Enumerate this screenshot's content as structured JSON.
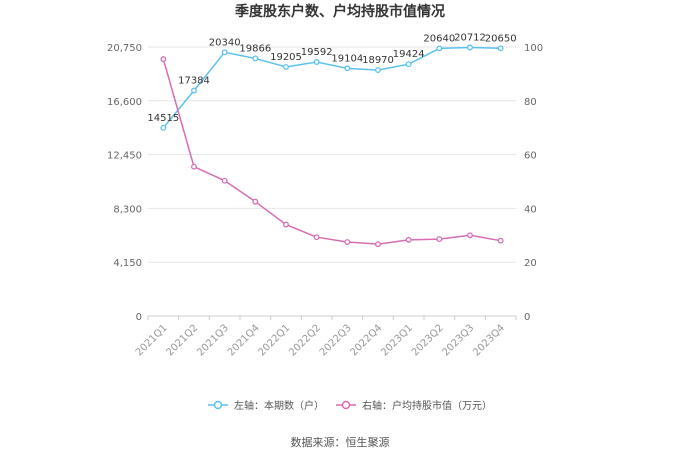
{
  "chart_data": {
    "type": "line",
    "title": "季度股东户数、户均持股市值情况",
    "categories": [
      "2021Q1",
      "2021Q2",
      "2021Q3",
      "2021Q4",
      "2022Q1",
      "2022Q2",
      "2022Q3",
      "2022Q4",
      "2023Q1",
      "2023Q2",
      "2023Q3",
      "2023Q4"
    ],
    "left_axis": {
      "min": 0,
      "max": 20750,
      "ticks": [
        "0",
        "4,150",
        "8,300",
        "12,450",
        "16,600",
        "20,750"
      ]
    },
    "right_axis": {
      "min": 0,
      "max": 100,
      "ticks": [
        "0",
        "20",
        "40",
        "60",
        "80",
        "100"
      ]
    },
    "series": [
      {
        "name": "左轴：本期数（户）",
        "axis": "left",
        "color": "#5bc2ee",
        "values": [
          14515,
          17384,
          20340,
          19866,
          19205,
          19592,
          19104,
          18970,
          19424,
          20640,
          20712,
          20650
        ],
        "labels": [
          "14515",
          "17384",
          "20340",
          "19866",
          "19205",
          "19592",
          "19104",
          "18970",
          "19424",
          "20640",
          "20712",
          "20650"
        ]
      },
      {
        "name": "右轴：户均持股市值（万元）",
        "axis": "right",
        "color": "#d86cb3",
        "values": [
          95.5,
          55.5,
          50.3,
          42.5,
          34.0,
          29.3,
          27.5,
          26.7,
          28.3,
          28.6,
          30.0,
          28.0
        ]
      }
    ],
    "grid": "horizontal",
    "legend_position": "bottom"
  },
  "source": "数据来源：恒生聚源"
}
